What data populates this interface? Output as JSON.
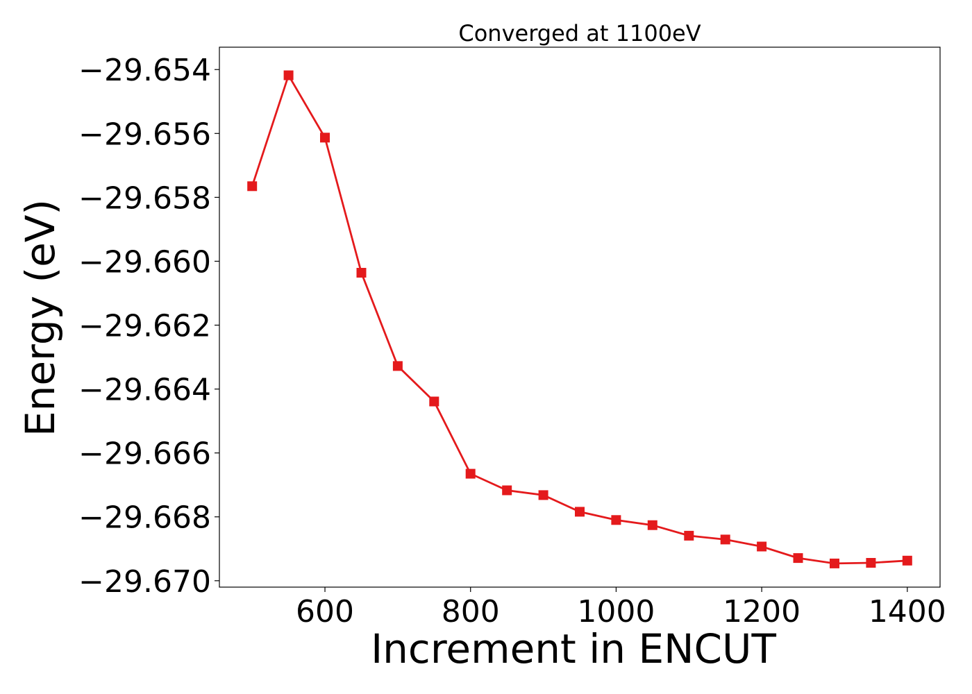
{
  "chart_data": {
    "type": "line",
    "title": "Converged at 1100eV",
    "xlabel": "Increment in ENCUT",
    "ylabel": "Energy (eV)",
    "xlim": [
      455,
      1445
    ],
    "ylim": [
      -29.6702,
      -29.6533
    ],
    "x_ticks": [
      600,
      800,
      1000,
      1200,
      1400
    ],
    "x_tick_labels": [
      "600",
      "800",
      "1000",
      "1200",
      "1400"
    ],
    "y_ticks": [
      -29.654,
      -29.656,
      -29.658,
      -29.66,
      -29.662,
      -29.664,
      -29.666,
      -29.668,
      -29.67
    ],
    "y_tick_labels": [
      "−29.654",
      "−29.656",
      "−29.658",
      "−29.660",
      "−29.662",
      "−29.664",
      "−29.666",
      "−29.668",
      "−29.670"
    ],
    "grid": false,
    "series": [
      {
        "color": "#e41a1c",
        "marker": "square",
        "x": [
          500,
          550,
          600,
          650,
          700,
          750,
          800,
          850,
          900,
          950,
          1000,
          1050,
          1100,
          1150,
          1200,
          1250,
          1300,
          1350,
          1400
        ],
        "y": [
          -29.65765,
          -29.65418,
          -29.65613,
          -29.66036,
          -29.66328,
          -29.66439,
          -29.66665,
          -29.66717,
          -29.66732,
          -29.66784,
          -29.6681,
          -29.66826,
          -29.66859,
          -29.66871,
          -29.66893,
          -29.66929,
          -29.66946,
          -29.66944,
          -29.66937
        ]
      }
    ]
  }
}
